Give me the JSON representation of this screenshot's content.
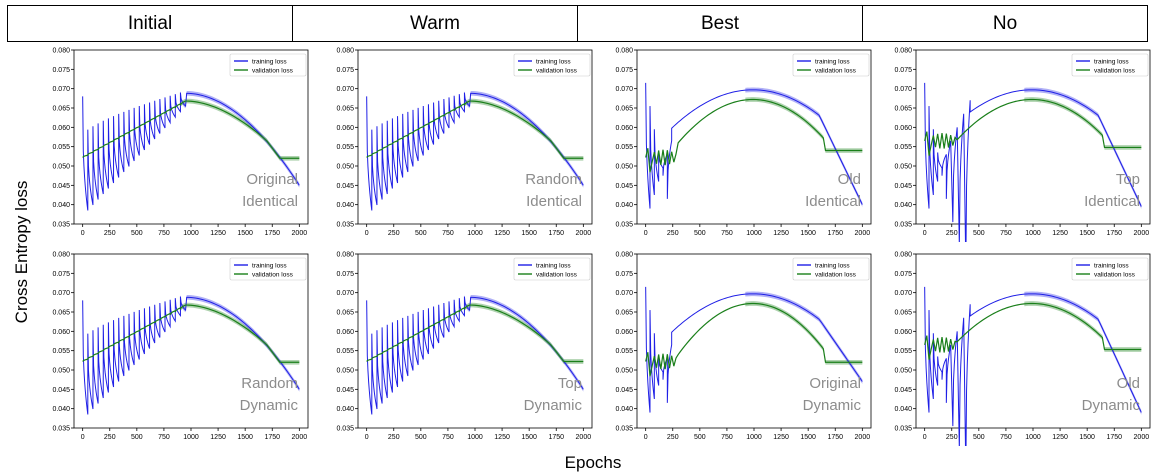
{
  "header": {
    "columns": [
      "Initial",
      "Warm",
      "Best",
      "No"
    ]
  },
  "axis_labels": {
    "y": "Cross Entropy loss",
    "x": "Epochs"
  },
  "chart_data": [
    {
      "type": "line",
      "row": 0,
      "col": 0,
      "annotation": [
        "Original",
        "Identical"
      ],
      "profile": "cyclic",
      "final_train": 0.045,
      "final_val": 0.052,
      "xlim": [
        -80,
        2080
      ],
      "ylim": [
        0.035,
        0.08
      ],
      "xticks": [
        0,
        250,
        500,
        750,
        1000,
        1250,
        1500,
        1750,
        2000
      ],
      "yticks": [
        0.035,
        0.04,
        0.045,
        0.05,
        0.055,
        0.06,
        0.065,
        0.07,
        0.075,
        0.08
      ],
      "series": [
        {
          "name": "training loss",
          "color": "#1f1fe6"
        },
        {
          "name": "validation loss",
          "color": "#1a7f1a"
        }
      ]
    },
    {
      "type": "line",
      "row": 0,
      "col": 1,
      "annotation": [
        "Random",
        "Identical"
      ],
      "profile": "cyclic",
      "final_train": 0.045,
      "final_val": 0.052,
      "xlim": [
        -80,
        2080
      ],
      "ylim": [
        0.035,
        0.08
      ],
      "xticks": [
        0,
        250,
        500,
        750,
        1000,
        1250,
        1500,
        1750,
        2000
      ],
      "yticks": [
        0.035,
        0.04,
        0.045,
        0.05,
        0.055,
        0.06,
        0.065,
        0.07,
        0.075,
        0.08
      ],
      "series": [
        {
          "name": "training loss",
          "color": "#1f1fe6"
        },
        {
          "name": "validation loss",
          "color": "#1a7f1a"
        }
      ]
    },
    {
      "type": "line",
      "row": 0,
      "col": 2,
      "annotation": [
        "Old",
        "Identical"
      ],
      "profile": "arch",
      "final_train": 0.04,
      "final_val": 0.054,
      "xlim": [
        -80,
        2080
      ],
      "ylim": [
        0.035,
        0.08
      ],
      "xticks": [
        0,
        250,
        500,
        750,
        1000,
        1250,
        1500,
        1750,
        2000
      ],
      "yticks": [
        0.035,
        0.04,
        0.045,
        0.05,
        0.055,
        0.06,
        0.065,
        0.07,
        0.075,
        0.08
      ],
      "series": [
        {
          "name": "training loss",
          "color": "#1f1fe6"
        },
        {
          "name": "validation loss",
          "color": "#1a7f1a"
        }
      ]
    },
    {
      "type": "line",
      "row": 0,
      "col": 3,
      "annotation": [
        "Top",
        "Identical"
      ],
      "profile": "plateau",
      "final_train": 0.0395,
      "final_val": 0.0548,
      "xlim": [
        -80,
        2080
      ],
      "ylim": [
        0.035,
        0.08
      ],
      "xticks": [
        0,
        250,
        500,
        750,
        1000,
        1250,
        1500,
        1750,
        2000
      ],
      "yticks": [
        0.035,
        0.04,
        0.045,
        0.05,
        0.055,
        0.06,
        0.065,
        0.07,
        0.075,
        0.08
      ],
      "series": [
        {
          "name": "training loss",
          "color": "#1f1fe6"
        },
        {
          "name": "validation loss",
          "color": "#1a7f1a"
        }
      ]
    },
    {
      "type": "line",
      "row": 1,
      "col": 0,
      "annotation": [
        "Random",
        "Dynamic"
      ],
      "profile": "cyclic",
      "final_train": 0.045,
      "final_val": 0.052,
      "xlim": [
        -80,
        2080
      ],
      "ylim": [
        0.035,
        0.08
      ],
      "xticks": [
        0,
        250,
        500,
        750,
        1000,
        1250,
        1500,
        1750,
        2000
      ],
      "yticks": [
        0.035,
        0.04,
        0.045,
        0.05,
        0.055,
        0.06,
        0.065,
        0.07,
        0.075,
        0.08
      ],
      "series": [
        {
          "name": "training loss",
          "color": "#1f1fe6"
        },
        {
          "name": "validation loss",
          "color": "#1a7f1a"
        }
      ]
    },
    {
      "type": "line",
      "row": 1,
      "col": 1,
      "annotation": [
        "Top",
        "Dynamic"
      ],
      "profile": "cyclic",
      "final_train": 0.045,
      "final_val": 0.0522,
      "xlim": [
        -80,
        2080
      ],
      "ylim": [
        0.035,
        0.08
      ],
      "xticks": [
        0,
        250,
        500,
        750,
        1000,
        1250,
        1500,
        1750,
        2000
      ],
      "yticks": [
        0.035,
        0.04,
        0.045,
        0.05,
        0.055,
        0.06,
        0.065,
        0.07,
        0.075,
        0.08
      ],
      "series": [
        {
          "name": "training loss",
          "color": "#1f1fe6"
        },
        {
          "name": "validation loss",
          "color": "#1a7f1a"
        }
      ]
    },
    {
      "type": "line",
      "row": 1,
      "col": 2,
      "annotation": [
        "Original",
        "Dynamic"
      ],
      "profile": "arch",
      "final_train": 0.047,
      "final_val": 0.052,
      "xlim": [
        -80,
        2080
      ],
      "ylim": [
        0.035,
        0.08
      ],
      "xticks": [
        0,
        250,
        500,
        750,
        1000,
        1250,
        1500,
        1750,
        2000
      ],
      "yticks": [
        0.035,
        0.04,
        0.045,
        0.05,
        0.055,
        0.06,
        0.065,
        0.07,
        0.075,
        0.08
      ],
      "series": [
        {
          "name": "training loss",
          "color": "#1f1fe6"
        },
        {
          "name": "validation loss",
          "color": "#1a7f1a"
        }
      ]
    },
    {
      "type": "line",
      "row": 1,
      "col": 3,
      "annotation": [
        "Old",
        "Dynamic"
      ],
      "profile": "plateau",
      "final_train": 0.039,
      "final_val": 0.0553,
      "xlim": [
        -80,
        2080
      ],
      "ylim": [
        0.035,
        0.08
      ],
      "xticks": [
        0,
        250,
        500,
        750,
        1000,
        1250,
        1500,
        1750,
        2000
      ],
      "yticks": [
        0.035,
        0.04,
        0.045,
        0.05,
        0.055,
        0.06,
        0.065,
        0.07,
        0.075,
        0.08
      ],
      "series": [
        {
          "name": "training loss",
          "color": "#1f1fe6"
        },
        {
          "name": "validation loss",
          "color": "#1a7f1a"
        }
      ]
    }
  ]
}
